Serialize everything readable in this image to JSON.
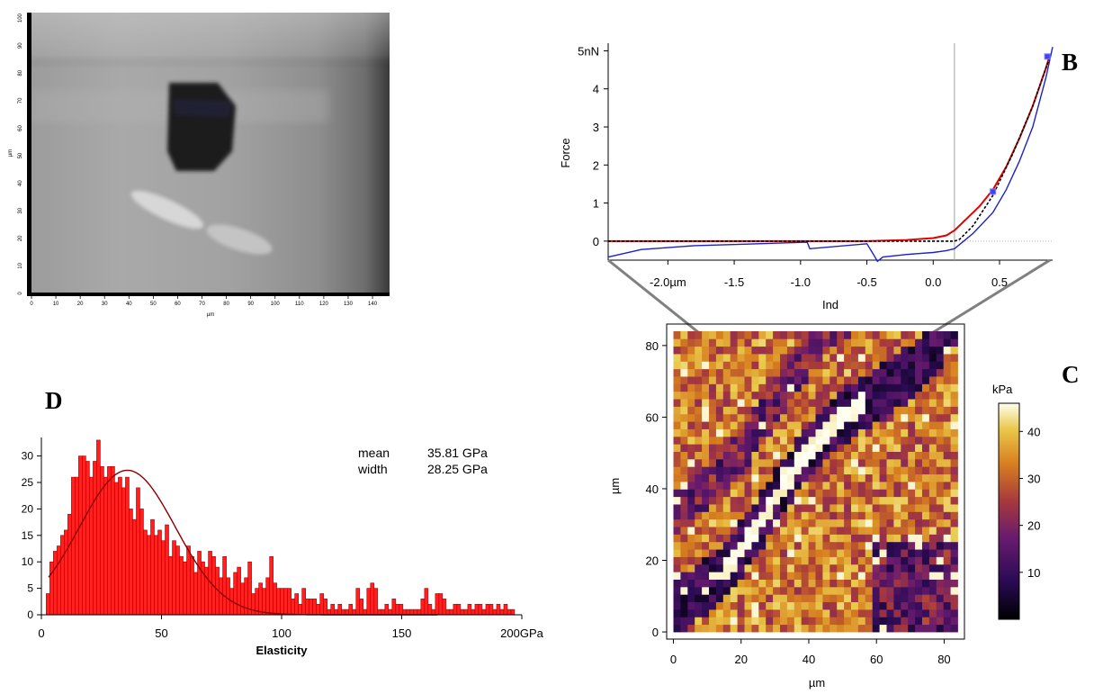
{
  "panels": {
    "A": "A",
    "B": "B",
    "C": "C",
    "D": "D"
  },
  "colors": {
    "approach": "#e00000",
    "retract": "#1a22c8",
    "fit": "#000000",
    "histogram": "#ff2020",
    "gauss": "#8b0000",
    "zoom_lines": "#808080"
  },
  "chart_data": [
    {
      "id": "A",
      "type": "image",
      "xlabel": "µm",
      "ylabel": "µm",
      "xticks": [
        0,
        10,
        20,
        30,
        40,
        50,
        60,
        70,
        80,
        90,
        100,
        110,
        120,
        130,
        140
      ],
      "yticks": [
        0,
        10,
        20,
        30,
        40,
        50,
        60,
        70,
        80,
        90,
        100
      ],
      "xlim": [
        0,
        147
      ],
      "ylim": [
        0,
        102
      ]
    },
    {
      "id": "B",
      "type": "line",
      "xlabel": "Ind",
      "ylabel": "Force",
      "xlim": [
        -2.45,
        0.9
      ],
      "ylim": [
        -0.5,
        5.2
      ],
      "xtick_labels": [
        "-2.0µm",
        "-1.5",
        "-1.0",
        "-0.5",
        "0.0",
        "0.5"
      ],
      "xtick_values": [
        -2.0,
        -1.5,
        -1.0,
        -0.5,
        0.0,
        0.5
      ],
      "ytick_labels": [
        "0",
        "1",
        "2",
        "3",
        "4",
        "5nN"
      ],
      "ytick_values": [
        0,
        1,
        2,
        3,
        4,
        5
      ],
      "contact_x": 0.16,
      "series": [
        {
          "x": [
            -2.45,
            -2.0,
            -1.5,
            -1.0,
            -0.5,
            -0.2,
            0.0,
            0.1,
            0.16,
            0.25,
            0.35,
            0.45,
            0.55,
            0.65,
            0.75,
            0.85,
            0.88
          ],
          "y": [
            0.0,
            0.0,
            0.0,
            0.0,
            0.0,
            0.03,
            0.08,
            0.15,
            0.28,
            0.58,
            0.92,
            1.35,
            1.95,
            2.7,
            3.55,
            4.55,
            4.9
          ]
        },
        {
          "x": [
            -2.45,
            -2.2,
            -1.8,
            -1.4,
            -0.95,
            -0.93,
            -0.5,
            -0.45,
            -0.42,
            -0.38,
            -0.2,
            0.0,
            0.1,
            0.16,
            0.3,
            0.45,
            0.55,
            0.65,
            0.75,
            0.85,
            0.9
          ],
          "y": [
            -0.42,
            -0.22,
            -0.12,
            -0.08,
            -0.03,
            -0.2,
            -0.07,
            -0.35,
            -0.53,
            -0.42,
            -0.35,
            -0.3,
            -0.25,
            -0.2,
            0.2,
            0.75,
            1.35,
            2.1,
            3.0,
            4.3,
            5.1
          ]
        },
        {
          "x": [
            -2.45,
            -1.0,
            0.0,
            0.16,
            0.2,
            0.3,
            0.45,
            0.6,
            0.75,
            0.88
          ],
          "y": [
            0.0,
            0.0,
            0.0,
            0.0,
            0.05,
            0.4,
            1.2,
            2.3,
            3.55,
            4.85
          ]
        }
      ],
      "markers": [
        {
          "x": 0.45,
          "y": 1.3
        },
        {
          "x": 0.86,
          "y": 4.85
        }
      ]
    },
    {
      "id": "C",
      "type": "heatmap",
      "xlabel": "µm",
      "ylabel": "µm",
      "xlim": [
        -2,
        86
      ],
      "ylim": [
        -2,
        86
      ],
      "xticks": [
        0,
        20,
        40,
        60,
        80
      ],
      "yticks": [
        0,
        20,
        40,
        60,
        80
      ],
      "grid_size": 40,
      "colorbar_label": "kPa",
      "colorbar_ticks": [
        10,
        20,
        30,
        40
      ],
      "colorbar_range": [
        0,
        46
      ],
      "notch_um": [
        37.5,
        62
      ]
    },
    {
      "id": "D",
      "type": "bar",
      "xlabel": "Elasticity",
      "xlim": [
        0,
        200
      ],
      "ylim": [
        0,
        33.5
      ],
      "xtick_labels": [
        "0",
        "50",
        "100",
        "150",
        "200GPa"
      ],
      "xtick_values": [
        0,
        50,
        100,
        150,
        200
      ],
      "ytick_values": [
        0,
        5,
        10,
        15,
        20,
        25,
        30
      ],
      "bin_width": 2,
      "bin_start": 2,
      "values": [
        4,
        10,
        12,
        13,
        15,
        16,
        19,
        26,
        26,
        30,
        30,
        29,
        26,
        29,
        33,
        28,
        26,
        28,
        28,
        25,
        26,
        24,
        26,
        20,
        18,
        24,
        20,
        16,
        15,
        18,
        15,
        16,
        14,
        17,
        11,
        14,
        13,
        11,
        10,
        13,
        11,
        8,
        12,
        10,
        9,
        12,
        11,
        9,
        7,
        11,
        7,
        5,
        8,
        9,
        6,
        7,
        10,
        4,
        5,
        6,
        5,
        7,
        11,
        6,
        5,
        5,
        5,
        5,
        3,
        4,
        2,
        5,
        3,
        3,
        3,
        2,
        4,
        3,
        1,
        2,
        1,
        2,
        1,
        1,
        2,
        1,
        5,
        3,
        1,
        5,
        6,
        5,
        1,
        1,
        2,
        1,
        3,
        2,
        2,
        1,
        1,
        1,
        1,
        1,
        3,
        5,
        2,
        1,
        4,
        4,
        3,
        1,
        1,
        2,
        2,
        1,
        1,
        2,
        1,
        2,
        2,
        1,
        2,
        2,
        1,
        2,
        1,
        2,
        1,
        1
      ],
      "fit": {
        "mean": 35.81,
        "width": 28.25,
        "amplitude": 27.3
      },
      "legend": {
        "mean_label": "mean",
        "mean_value": "35.81 GPa",
        "width_label": "width",
        "width_value": "28.25 GPa"
      }
    }
  ]
}
